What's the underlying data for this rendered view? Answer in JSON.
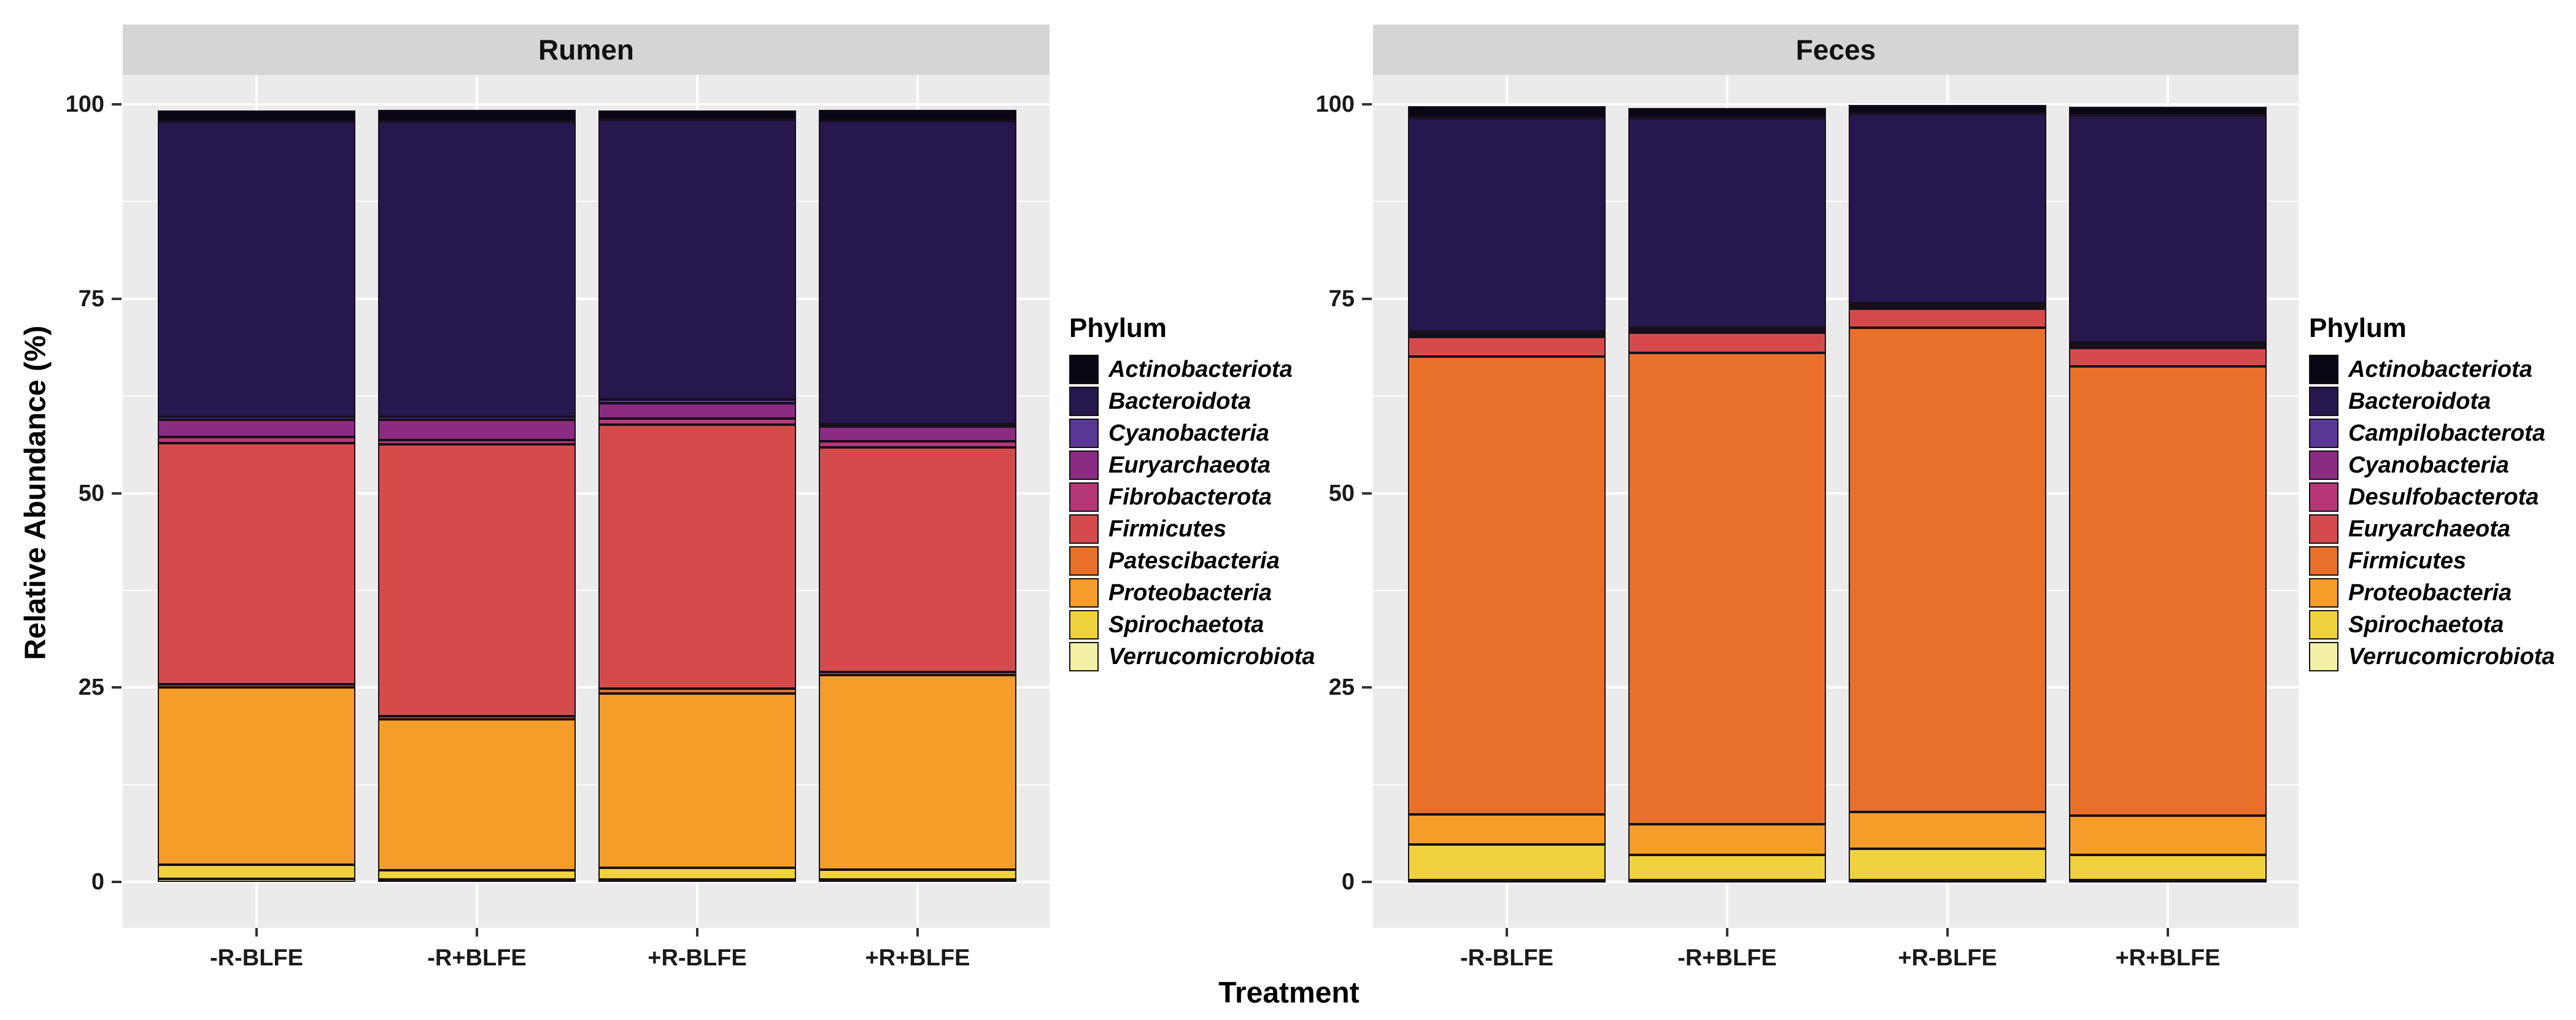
{
  "y_axis": {
    "title": "Relative Abundance (%)",
    "ticks": [
      0,
      25,
      50,
      75,
      100
    ],
    "minor_ticks": [
      12.5,
      37.5,
      62.5,
      87.5
    ]
  },
  "x_axis": {
    "title": "Treatment",
    "categories": [
      "-R-BLFE",
      "-R+BLFE",
      "+R-BLFE",
      "+R+BLFE"
    ]
  },
  "colors": {
    "panel_background": "#ebebeb",
    "strip_background": "#d5d5d5",
    "gridline": "#ffffff",
    "outline": "#17101a"
  },
  "chart_data": {
    "type": "bar",
    "stacked": true,
    "ylim": [
      0,
      100
    ],
    "grid": true,
    "legend_position": "right",
    "ylabel": "Relative Abundance (%)",
    "xlabel": "Treatment",
    "categories": [
      "-R-BLFE",
      "-R+BLFE",
      "+R-BLFE",
      "+R+BLFE"
    ],
    "panels": [
      {
        "title": "Rumen",
        "legend_title": "Phylum",
        "series": [
          {
            "name": "Actinobacteriota",
            "color": "#0b0614",
            "values": [
              1.4,
              1.5,
              1.2,
              1.4
            ]
          },
          {
            "name": "Bacteroidota",
            "color": "#26184e",
            "values": [
              38.0,
              38.0,
              36.0,
              39.0
            ]
          },
          {
            "name": "Cyanobacteria",
            "color": "#5a3794",
            "values": [
              0.4,
              0.4,
              0.4,
              0.3
            ]
          },
          {
            "name": "Euryarchaeota",
            "color": "#8c2b84",
            "values": [
              2.2,
              2.6,
              2.0,
              1.9
            ]
          },
          {
            "name": "Fibrobacterota",
            "color": "#b53778",
            "values": [
              0.8,
              0.5,
              0.8,
              0.8
            ]
          },
          {
            "name": "Firmicutes",
            "color": "#d54b4c",
            "values": [
              31.0,
              35.0,
              33.9,
              28.9
            ]
          },
          {
            "name": "Patescibacteria",
            "color": "#e8702a",
            "values": [
              0.4,
              0.4,
              0.7,
              0.4
            ]
          },
          {
            "name": "Proteobacteria",
            "color": "#f59d28",
            "values": [
              22.8,
              19.4,
              22.4,
              25.0
            ]
          },
          {
            "name": "Spirochaetota",
            "color": "#efd23e",
            "values": [
              1.8,
              1.2,
              1.5,
              1.3
            ]
          },
          {
            "name": "Verrucomicrobiota",
            "color": "#f4f0a6",
            "values": [
              0.4,
              0.3,
              0.3,
              0.3
            ]
          }
        ]
      },
      {
        "title": "Feces",
        "legend_title": "Phylum",
        "series": [
          {
            "name": "Actinobacteriota",
            "color": "#0b0614",
            "values": [
              1.5,
              1.2,
              1.1,
              1.1
            ]
          },
          {
            "name": "Bacteroidota",
            "color": "#26184e",
            "values": [
              27.5,
              27.0,
              24.4,
              29.2
            ]
          },
          {
            "name": "Campilobacterota",
            "color": "#5a3794",
            "values": [
              0.2,
              0.2,
              0.2,
              0.2
            ]
          },
          {
            "name": "Cyanobacteria",
            "color": "#8c2b84",
            "values": [
              0.2,
              0.2,
              0.2,
              0.2
            ]
          },
          {
            "name": "Desulfobacterota",
            "color": "#b53778",
            "values": [
              0.3,
              0.3,
              0.3,
              0.3
            ]
          },
          {
            "name": "Euryarchaeota",
            "color": "#d54b4c",
            "values": [
              2.5,
              2.6,
              2.4,
              2.4
            ]
          },
          {
            "name": "Firmicutes",
            "color": "#e8702a",
            "values": [
              58.9,
              60.6,
              62.3,
              57.8
            ]
          },
          {
            "name": "Proteobacteria",
            "color": "#f59d28",
            "values": [
              3.9,
              3.9,
              4.7,
              5.0
            ]
          },
          {
            "name": "Spirochaetota",
            "color": "#efd23e",
            "values": [
              4.6,
              3.3,
              4.1,
              3.3
            ]
          },
          {
            "name": "Verrucomicrobiota",
            "color": "#f4f0a6",
            "values": [
              0.2,
              0.2,
              0.2,
              0.2
            ]
          }
        ]
      }
    ]
  }
}
